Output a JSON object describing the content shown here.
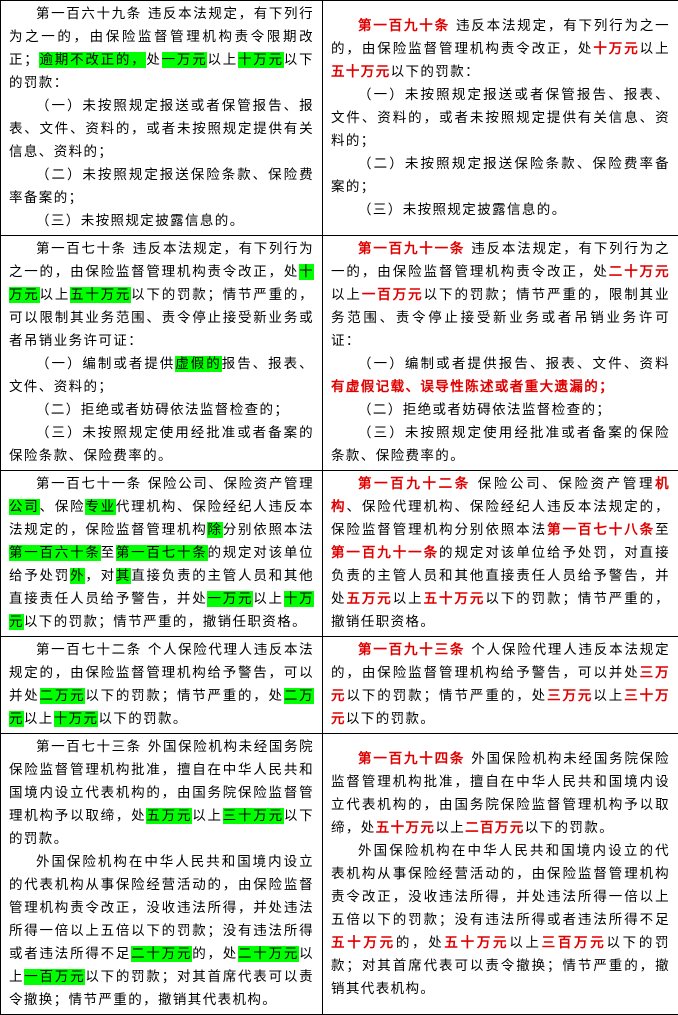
{
  "table": {
    "rows": [
      {
        "left": [
          [
            "第一百六十九条 违反本法规定，有下列行为之一的，由保险监督管理机构责令限期改正；",
            {
              "hl": "逾期不改正的，"
            },
            "处",
            {
              "hl": "一万元"
            },
            "以上",
            {
              "hl": "十万元"
            },
            "以下的罚款："
          ],
          [
            "（一）未按照规定报送或者保管报告、报表、文件、资料的，或者未按照规定提供有关信息、资料的；"
          ],
          [
            "（二）未按照规定报送保险条款、保险费率备案的；"
          ],
          [
            "（三）未按照规定披露信息的。"
          ]
        ],
        "right": [
          [
            {
              "red": "第一百九十条"
            },
            " 违反本法规定，有下列行为之一的，由保险监督管理机构责令改正，处",
            {
              "red": "十万元"
            },
            "以上",
            {
              "red": "五十万元"
            },
            "以下的罚款："
          ],
          [
            "（一）未按照规定报送或者保管报告、报表、文件、资料的，或者未按照规定提供有关信息、资料的；"
          ],
          [
            "（二）未按照规定报送保险条款、保险费率备案的；"
          ],
          [
            "（三）未按照规定披露信息的。"
          ]
        ]
      },
      {
        "left": [
          [
            "第一百七十条 违反本法规定，有下列行为之一的，由保险监督管理机构责令改正，处",
            {
              "hl": "十万元"
            },
            "以上",
            {
              "hl": "五十万元"
            },
            "以下的罚款；情节严重的，可以限制其业务范围、责令停止接受新业务或者吊销业务许可证："
          ],
          [
            "（一）编制或者提供",
            {
              "hl": "虚假的"
            },
            "报告、报表、文件、资料的；"
          ],
          [
            "（二）拒绝或者妨碍依法监督检查的；"
          ],
          [
            "（三）未按照规定使用经批准或者备案的保险条款、保险费率的。"
          ]
        ],
        "right": [
          [
            {
              "red": "第一百九十一条"
            },
            " 违反本法规定，有下列行为之一的，由保险监督管理机构责令改正，处",
            {
              "red": "二十万元"
            },
            "以上",
            {
              "red": "一百万元"
            },
            "以下的罚款；情节严重的，限制其业务范围、责令停止接受新业务或者吊销业务许可证："
          ],
          [
            "（一）编制或者提供报告、报表、文件、资料",
            {
              "red": "有虚假记载、误导性陈述或者重大遗漏的；"
            }
          ],
          [
            "（二）拒绝或者妨碍依法监督检查的；"
          ],
          [
            "（三）未按照规定使用经批准或者备案的保险条款、保险费率的。"
          ]
        ]
      },
      {
        "left": [
          [
            "第一百七十一条 保险公司、保险资产管理",
            {
              "hl": "公司"
            },
            "、保险",
            {
              "hl": "专业"
            },
            "代理机构、保险经纪人违反本法规定的，保险监督管理机构",
            {
              "hl": "除"
            },
            "分别依照本法",
            {
              "hl": "第一百六十条"
            },
            "至",
            {
              "hl": "第一百七十条"
            },
            "的规定对该单位给予处罚",
            {
              "hl": "外"
            },
            "，对",
            {
              "hl": "其"
            },
            "直接负责的主管人员和其他直接责任人员给予警告，并处",
            {
              "hl": "一万元"
            },
            "以上",
            {
              "hl": "十万元"
            },
            "以下的罚款；情节严重的，撤销任职资格。"
          ]
        ],
        "right": [
          [
            {
              "red": "第一百九十二条"
            },
            " 保险公司、保险资产管理",
            {
              "red": "机构"
            },
            "、保险代理机构、保险经纪人违反本法规定的，保险监督管理机构分别依照本法",
            {
              "red": "第一百七十八条"
            },
            "至",
            {
              "red": "第一百九十一条"
            },
            "的规定对该单位给予处罚，对直接负责的主管人员和其他直接责任人员给予警告，并处",
            {
              "red": "五万元"
            },
            "以上",
            {
              "red": "五十万元"
            },
            "以下的罚款；情节严重的，撤销任职资格。"
          ]
        ]
      },
      {
        "left": [
          [
            "第一百七十二条 个人保险代理人违反本法规定的，由保险监督管理机构给予警告，可以并处",
            {
              "hl": "二万元"
            },
            "以下的罚款；情节严重的，处",
            {
              "hl": "二万元"
            },
            "以上",
            {
              "hl": "十万元"
            },
            "以下的罚款。"
          ]
        ],
        "right": [
          [
            {
              "red": "第一百九十三条"
            },
            " 个人保险代理人违反本法规定的，由保险监督管理机构给予警告，可以并处",
            {
              "red": "三万元"
            },
            "以下的罚款；情节严重的，处",
            {
              "red": "三万元"
            },
            "以上",
            {
              "red": "三十万元"
            },
            "以下的罚款。"
          ]
        ]
      },
      {
        "left": [
          [
            "第一百七十三条 外国保险机构未经国务院保险监督管理机构批准，擅自在中华人民共和国境内设立代表机构的，由国务院保险监督管理机构予以取缔，处",
            {
              "hl": "五万元"
            },
            "以上",
            {
              "hl": "三十万元"
            },
            "以下的罚款。"
          ],
          [
            "外国保险机构在中华人民共和国境内设立的代表机构从事保险经营活动的，由保险监督管理机构责令改正，没收违法所得，并处违法所得一倍以上五倍以下的罚款；没有违法所得或者违法所得不足",
            {
              "hl": "二十万元"
            },
            "的，处",
            {
              "hl": "二十万元"
            },
            "以上",
            {
              "hl": "一百万元"
            },
            "以下的罚款；对其首席代表可以责令撤换；情节严重的，撤销其代表机构。"
          ]
        ],
        "right": [
          [
            {
              "red": "第一百九十四条"
            },
            " 外国保险机构未经国务院保险监督管理机构批准，擅自在中华人民共和国境内设立代表机构的，由国务院保险监督管理机构予以取缔，处",
            {
              "red": "五十万元"
            },
            "以上",
            {
              "red": "二百万元"
            },
            "以下的罚款。"
          ],
          [
            "外国保险机构在中华人民共和国境内设立的代表机构从事保险经营活动的，由保险监督管理机构责令改正，没收违法所得，并处违法所得一倍以上五倍以下的罚款；没有违法所得或者违法所得不足",
            {
              "red": "五十万元"
            },
            "的，处",
            {
              "red": "五十万元"
            },
            "以上",
            {
              "red": "三百万元"
            },
            "以下的罚款；对其首席代表可以责令撤换；情节严重的，撤销其代表机构。"
          ]
        ]
      }
    ]
  }
}
